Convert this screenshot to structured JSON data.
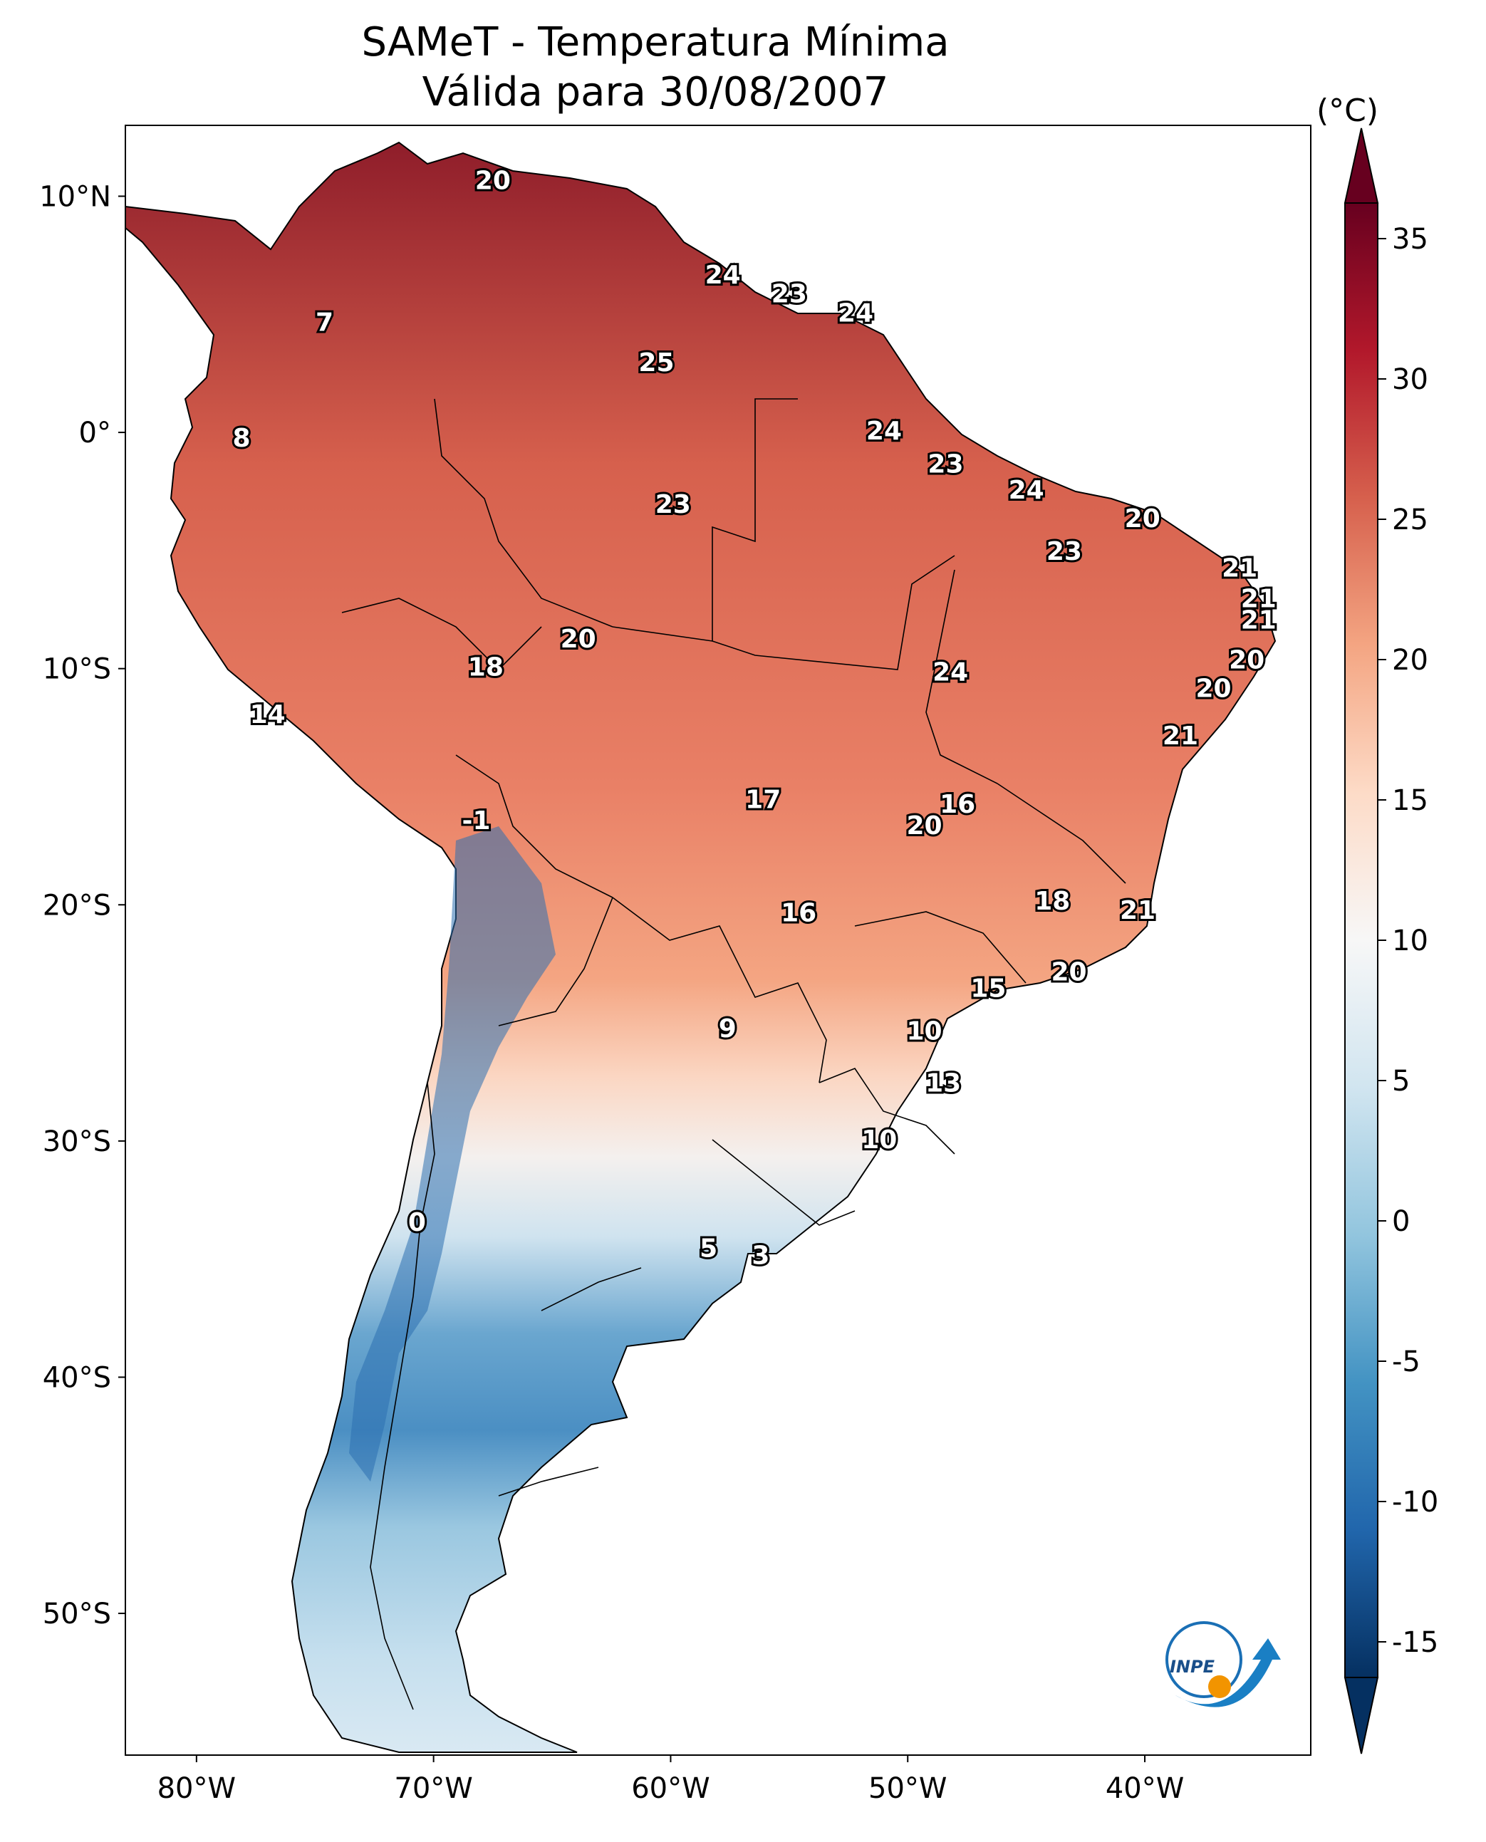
{
  "title": {
    "line1": "SAMeT - Temperatura Mínima",
    "line2": "Válida para 30/08/2007"
  },
  "colorbar": {
    "unit": "(°C)",
    "ticks": [
      "35",
      "30",
      "25",
      "20",
      "15",
      "10",
      "5",
      "0",
      "-5",
      "-10",
      "-15"
    ],
    "range": [
      -15,
      35
    ],
    "colormap": [
      "#053061",
      "#2166ac",
      "#4393c3",
      "#92c5de",
      "#d1e5f0",
      "#f7f7f7",
      "#fddbc7",
      "#f4a582",
      "#d6604d",
      "#b2182b",
      "#67001f"
    ]
  },
  "axes": {
    "lon_ticks": [
      "80°W",
      "70°W",
      "60°W",
      "50°W",
      "40°W"
    ],
    "lat_ticks": [
      "10°N",
      "0°",
      "10°S",
      "20°S",
      "30°S",
      "40°S",
      "50°S"
    ],
    "lon_range": [
      -83,
      -33
    ],
    "lat_range": [
      -56,
      13
    ]
  },
  "stations": [
    {
      "lon": -67.5,
      "lat": 10.6,
      "value": "20"
    },
    {
      "lon": -57.8,
      "lat": 6.6,
      "value": "24"
    },
    {
      "lon": -55.0,
      "lat": 5.8,
      "value": "23"
    },
    {
      "lon": -52.2,
      "lat": 5.0,
      "value": "24"
    },
    {
      "lon": -74.6,
      "lat": 4.6,
      "value": "7"
    },
    {
      "lon": -60.6,
      "lat": 2.9,
      "value": "25"
    },
    {
      "lon": -51.0,
      "lat": 0.0,
      "value": "24"
    },
    {
      "lon": -78.1,
      "lat": -0.3,
      "value": "8"
    },
    {
      "lon": -48.4,
      "lat": -1.4,
      "value": "23"
    },
    {
      "lon": -45.0,
      "lat": -2.5,
      "value": "24"
    },
    {
      "lon": -59.9,
      "lat": -3.1,
      "value": "23"
    },
    {
      "lon": -40.1,
      "lat": -3.7,
      "value": "20"
    },
    {
      "lon": -43.4,
      "lat": -5.1,
      "value": "23"
    },
    {
      "lon": -36.0,
      "lat": -5.8,
      "value": "21"
    },
    {
      "lon": -35.2,
      "lat": -7.1,
      "value": "21"
    },
    {
      "lon": -35.2,
      "lat": -8.0,
      "value": "21"
    },
    {
      "lon": -63.9,
      "lat": -8.8,
      "value": "20"
    },
    {
      "lon": -35.7,
      "lat": -9.7,
      "value": "20"
    },
    {
      "lon": -67.8,
      "lat": -10.0,
      "value": "18"
    },
    {
      "lon": -48.2,
      "lat": -10.2,
      "value": "24"
    },
    {
      "lon": -37.1,
      "lat": -10.9,
      "value": "20"
    },
    {
      "lon": -77.0,
      "lat": -12.0,
      "value": "14"
    },
    {
      "lon": -38.5,
      "lat": -12.9,
      "value": "21"
    },
    {
      "lon": -56.1,
      "lat": -15.6,
      "value": "17"
    },
    {
      "lon": -47.9,
      "lat": -15.8,
      "value": "16"
    },
    {
      "lon": -49.3,
      "lat": -16.7,
      "value": "20"
    },
    {
      "lon": -68.2,
      "lat": -16.5,
      "value": "-1"
    },
    {
      "lon": -43.9,
      "lat": -19.9,
      "value": "18"
    },
    {
      "lon": -54.6,
      "lat": -20.4,
      "value": "16"
    },
    {
      "lon": -40.3,
      "lat": -20.3,
      "value": "21"
    },
    {
      "lon": -43.2,
      "lat": -22.9,
      "value": "20"
    },
    {
      "lon": -46.6,
      "lat": -23.6,
      "value": "15"
    },
    {
      "lon": -57.6,
      "lat": -25.3,
      "value": "9"
    },
    {
      "lon": -49.3,
      "lat": -25.4,
      "value": "10"
    },
    {
      "lon": -48.5,
      "lat": -27.6,
      "value": "13"
    },
    {
      "lon": -51.2,
      "lat": -30.0,
      "value": "10"
    },
    {
      "lon": -70.7,
      "lat": -33.5,
      "value": "0"
    },
    {
      "lon": -58.4,
      "lat": -34.6,
      "value": "5"
    },
    {
      "lon": -56.2,
      "lat": -34.9,
      "value": "3"
    }
  ],
  "logo": {
    "text": "INPE"
  }
}
